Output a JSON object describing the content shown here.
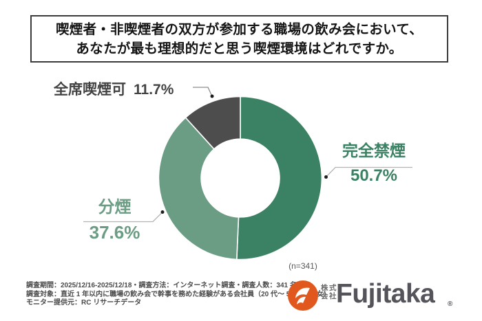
{
  "title": {
    "line1": "喫煙者・非喫煙者の双方が参加する職場の飲み会において、",
    "line2": "あなたが最も理想的だと思う喫煙環境はどれですか。"
  },
  "chart_data": {
    "type": "pie",
    "subtype": "donut",
    "title": "喫煙者・非喫煙者の双方が参加する職場の飲み会において、あなたが最も理想的だと思う喫煙環境はどれですか。",
    "categories": [
      "完全禁煙",
      "分煙",
      "全席喫煙可"
    ],
    "values": [
      50.7,
      37.6,
      11.7
    ],
    "unit": "%",
    "sample_size": 341,
    "sample_label": "(n=341)",
    "start_angle_deg": 0,
    "hole_ratio": 0.48,
    "separator_color": "#ffffff",
    "segments": [
      {
        "key": "kanzen-kinen",
        "label": "完全禁煙",
        "value": 50.7,
        "display": "50.7%",
        "color": "#3B8264"
      },
      {
        "key": "bunen",
        "label": "分煙",
        "value": 37.6,
        "display": "37.6%",
        "color": "#6B9C84"
      },
      {
        "key": "zenseki-kitsuenka",
        "label": "全席喫煙可",
        "value": 11.7,
        "display": "11.7%",
        "color": "#4D4D4D"
      }
    ]
  },
  "footer": {
    "lines": [
      "調査期間：2025/12/16-2025/12/18・調査方法：インターネット調査・調査人数：341 名",
      "調査対象：直近 1 年以内に職場の飲み会で幹事を務めた経験がある会社員（20 代〜 50 代の男女）",
      "モニター提供元：RC リサーチデータ"
    ]
  },
  "logo": {
    "prefix_line1": "株式",
    "prefix_line2": "会社",
    "name": "Fujitaka",
    "registered_mark": "®",
    "icon_color": "#E1581E",
    "text_color": "#54545A"
  }
}
